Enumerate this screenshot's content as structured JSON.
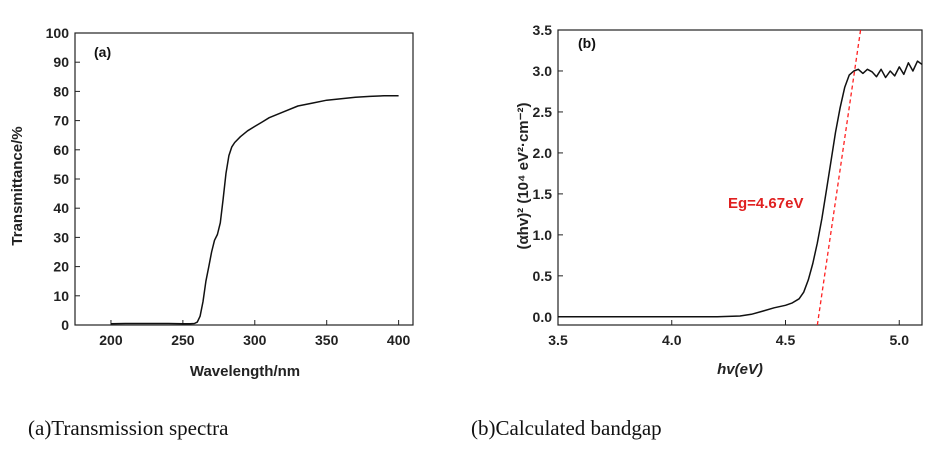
{
  "chart_data": [
    {
      "type": "line",
      "panel_label": "(a)",
      "xlabel": "Wavelength/nm",
      "ylabel": "Transmittance/%",
      "xlim": [
        175,
        410
      ],
      "ylim": [
        0,
        100
      ],
      "xticks": [
        200,
        250,
        300,
        350,
        400
      ],
      "yticks": [
        0,
        10,
        20,
        30,
        40,
        50,
        60,
        70,
        80,
        90,
        100
      ],
      "grid": false,
      "series": [
        {
          "line_color": "#111111",
          "x": [
            200,
            210,
            220,
            230,
            240,
            250,
            255,
            258,
            260,
            262,
            264,
            266,
            268,
            270,
            272,
            274,
            276,
            278,
            280,
            282,
            284,
            286,
            290,
            295,
            300,
            305,
            310,
            320,
            330,
            340,
            350,
            360,
            370,
            380,
            390,
            400
          ],
          "y": [
            0.4,
            0.5,
            0.5,
            0.5,
            0.5,
            0.4,
            0.4,
            0.5,
            1,
            3,
            8,
            15,
            20,
            25,
            29,
            31,
            35,
            43,
            52,
            58,
            61,
            62.5,
            64.5,
            66.5,
            68,
            69.5,
            71,
            73,
            75,
            76,
            77,
            77.5,
            78,
            78.3,
            78.5,
            78.5
          ]
        }
      ],
      "caption": "(a)Transmission spectra"
    },
    {
      "type": "line",
      "panel_label": "(b)",
      "xlabel": "hv(eV)",
      "ylabel": "(αhv)² (10⁴ eV²·cm⁻²)",
      "xlim": [
        3.5,
        5.1
      ],
      "ylim": [
        -0.1,
        3.5
      ],
      "xticks": [
        3.5,
        4.0,
        4.5,
        5.0
      ],
      "yticks": [
        0.0,
        0.5,
        1.0,
        1.5,
        2.0,
        2.5,
        3.0,
        3.5
      ],
      "grid": false,
      "series": [
        {
          "line_color": "#111111",
          "x": [
            3.5,
            3.8,
            4.0,
            4.2,
            4.3,
            4.35,
            4.4,
            4.45,
            4.5,
            4.53,
            4.56,
            4.58,
            4.6,
            4.62,
            4.64,
            4.66,
            4.68,
            4.7,
            4.72,
            4.74,
            4.76,
            4.78,
            4.8,
            4.82,
            4.84,
            4.86,
            4.88,
            4.9,
            4.92,
            4.94,
            4.96,
            4.98,
            5.0,
            5.02,
            5.04,
            5.06,
            5.08,
            5.1
          ],
          "y": [
            0.0,
            0.0,
            0.0,
            0.0,
            0.01,
            0.03,
            0.07,
            0.11,
            0.14,
            0.17,
            0.22,
            0.3,
            0.45,
            0.65,
            0.9,
            1.2,
            1.55,
            1.9,
            2.25,
            2.55,
            2.8,
            2.95,
            3.0,
            3.02,
            2.97,
            3.02,
            2.99,
            2.93,
            3.02,
            2.92,
            3.0,
            2.94,
            3.05,
            2.96,
            3.1,
            3.0,
            3.12,
            3.08
          ]
        }
      ],
      "fit_line": {
        "line_color": "#ff2020",
        "x": [
          4.64,
          4.83
        ],
        "y": [
          -0.1,
          3.5
        ]
      },
      "annotation": "Eg=4.67eV",
      "annotation_color": "#e02020",
      "caption": "(b)Calculated bandgap"
    }
  ]
}
